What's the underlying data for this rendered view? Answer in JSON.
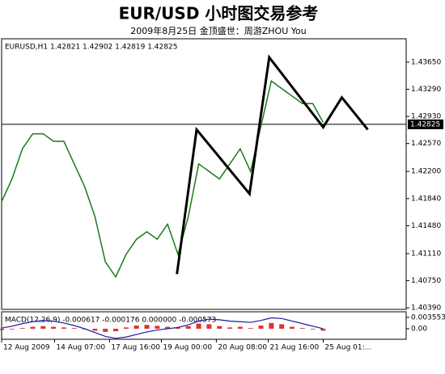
{
  "chart_data": [
    {
      "type": "line",
      "title": "EUR/USD 小时图交易参考",
      "subtitle": "2009年8月25日 金顶盛世：周游ZHOU You",
      "header": "EURUSD,H1 1.42821 1.42902 1.42819 1.42825",
      "xlim": [
        0,
        39
      ],
      "ylim": [
        1.4037,
        1.4396
      ],
      "yticks": [
        {
          "value": 1.4365,
          "label": "1.43650"
        },
        {
          "value": 1.4329,
          "label": "1.43290"
        },
        {
          "value": 1.4293,
          "label": "1.42930"
        },
        {
          "value": 1.4257,
          "label": "1.42570"
        },
        {
          "value": 1.422,
          "label": "1.42200"
        },
        {
          "value": 1.4184,
          "label": "1.41840"
        },
        {
          "value": 1.4148,
          "label": "1.41480"
        },
        {
          "value": 1.4111,
          "label": "1.41110"
        },
        {
          "value": 1.4075,
          "label": "1.40750"
        },
        {
          "value": 1.4039,
          "label": "1.40390"
        }
      ],
      "current_price": 1.42825,
      "series": [
        {
          "color": "#1a7a1a",
          "x": [
            0,
            1,
            2,
            3,
            4,
            5,
            6,
            7,
            8,
            9,
            10,
            11,
            12,
            13,
            14,
            15,
            16,
            17,
            18,
            19,
            20,
            21,
            22,
            23,
            24,
            25,
            26,
            27,
            28,
            29,
            30,
            31
          ],
          "values": [
            1.418,
            1.421,
            1.425,
            1.427,
            1.427,
            1.426,
            1.426,
            1.423,
            1.42,
            1.416,
            1.41,
            1.408,
            1.411,
            1.413,
            1.414,
            1.413,
            1.415,
            1.411,
            1.416,
            1.423,
            1.422,
            1.421,
            1.423,
            1.425,
            1.422,
            1.428,
            1.434,
            1.433,
            1.432,
            1.431,
            1.431,
            1.4285
          ]
        },
        {
          "color": "#000000",
          "x": [
            16.9,
            18.8,
            23.9,
            25.8,
            31.0,
            32.8,
            35.3
          ],
          "values": [
            1.40838,
            1.42755,
            1.41903,
            1.43714,
            1.42787,
            1.43181,
            1.42755
          ]
        }
      ]
    },
    {
      "type": "bar",
      "label": "MACD(12,26,9) -0.000617 -0.000176 0.000000 -0.000573",
      "xlim": [
        0,
        39
      ],
      "ylim": [
        -0.0033,
        0.0053
      ],
      "yticks": [
        {
          "value": 0.003553,
          "label": "0.003553"
        },
        {
          "value": 0,
          "label": "0.00"
        }
      ],
      "xticks": [
        {
          "value": 0,
          "label": "12 Aug 2009"
        },
        {
          "value": 5.1,
          "label": "14 Aug 07:00"
        },
        {
          "value": 10.4,
          "label": "17 Aug 16:00"
        },
        {
          "value": 15.4,
          "label": "19 Aug 00:00"
        },
        {
          "value": 20.7,
          "label": "20 Aug 08:00"
        },
        {
          "value": 25.7,
          "label": "21 Aug 16:00"
        },
        {
          "value": 31.0,
          "label": "25 Aug 01:..."
        }
      ],
      "color": "#e03030",
      "values": [
        -0.0004,
        -0.0002,
        0.0002,
        0.0006,
        0.0008,
        0.0006,
        0.0004,
        0.0002,
        -0.0002,
        -0.0006,
        -0.001,
        -0.0008,
        0.0004,
        0.001,
        0.0012,
        0.0009,
        0.0006,
        0.0003,
        0.0008,
        0.0016,
        0.0014,
        0.0008,
        0.0004,
        0.0006,
        0.0002,
        0.001,
        0.0018,
        0.0014,
        0.0006,
        0.0002,
        -0.0002,
        -0.0006
      ],
      "series": [
        {
          "color": "#1a1aa0",
          "values": [
            0.0002,
            0.0008,
            0.0016,
            0.0022,
            0.0026,
            0.0024,
            0.0018,
            0.001,
            0,
            -0.0012,
            -0.0024,
            -0.003,
            -0.0026,
            -0.0018,
            -0.001,
            -0.0004,
            0,
            0.0004,
            0.0012,
            0.0024,
            0.003,
            0.0028,
            0.0024,
            0.0022,
            0.002,
            0.0026,
            0.0034,
            0.0032,
            0.0024,
            0.0016,
            0.0008,
            0
          ]
        }
      ]
    }
  ]
}
